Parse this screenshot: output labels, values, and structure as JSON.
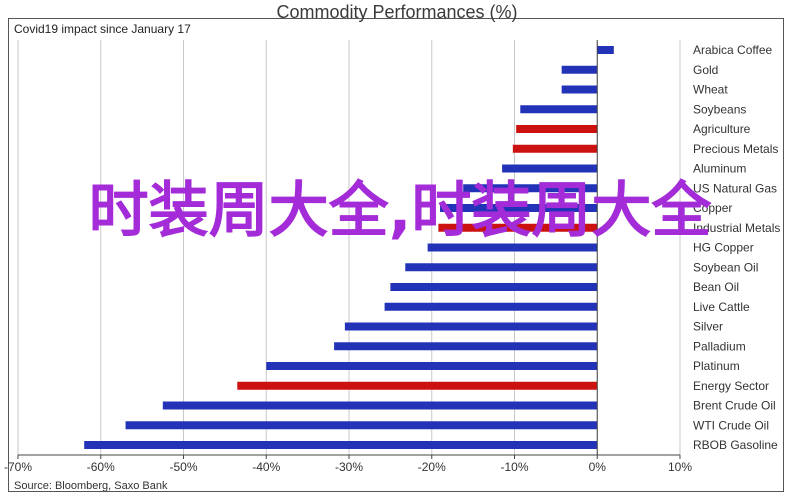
{
  "header": {
    "title": "Commodity Performances (%)",
    "subtitle": "Covid19 impact since January 17"
  },
  "footer": {
    "source": "Source: Bloomberg, Saxo Bank"
  },
  "overlay": {
    "text": "时装周大全,时装周大全"
  },
  "colors": {
    "blue": "#2233b8",
    "red": "#cc1111",
    "grid": "#c8c8c8",
    "axis": "#444444"
  },
  "chart_data": {
    "type": "bar",
    "orientation": "horizontal",
    "title": "Commodity Performances (%)",
    "subtitle": "Covid19 impact since January 17",
    "xlim": [
      -70,
      10
    ],
    "xticks": [
      -70,
      -60,
      -50,
      -40,
      -30,
      -20,
      -10,
      0,
      10
    ],
    "xtick_labels": [
      "-70%",
      "-60%",
      "-50%",
      "-40%",
      "-30%",
      "-20%",
      "-10%",
      "0%",
      "10%"
    ],
    "grid": "vertical",
    "categories": [
      "Arabica Coffee",
      "Gold",
      "Wheat",
      "Soybeans",
      "Agriculture",
      "Precious Metals",
      "Aluminum",
      "US Natural Gas",
      "Copper",
      "Industrial Metals",
      "HG Copper",
      "Soybean Oil",
      "Bean Oil",
      "Live Cattle",
      "Silver",
      "Palladium",
      "Platinum",
      "Energy Sector",
      "Brent Crude Oil",
      "WTI Crude Oil",
      "RBOB Gasoline"
    ],
    "values": [
      2,
      -4.3,
      -4.3,
      -9.3,
      -9.8,
      -10.2,
      -11.5,
      -16.2,
      -19,
      -19.2,
      -20.5,
      -23.2,
      -25,
      -25.7,
      -30.5,
      -31.8,
      -40,
      -43.5,
      -52.5,
      -57,
      -62
    ],
    "bar_colors": [
      "blue",
      "blue",
      "blue",
      "blue",
      "red",
      "red",
      "blue",
      "blue",
      "blue",
      "red",
      "blue",
      "blue",
      "blue",
      "blue",
      "blue",
      "blue",
      "blue",
      "red",
      "blue",
      "blue",
      "blue"
    ]
  }
}
